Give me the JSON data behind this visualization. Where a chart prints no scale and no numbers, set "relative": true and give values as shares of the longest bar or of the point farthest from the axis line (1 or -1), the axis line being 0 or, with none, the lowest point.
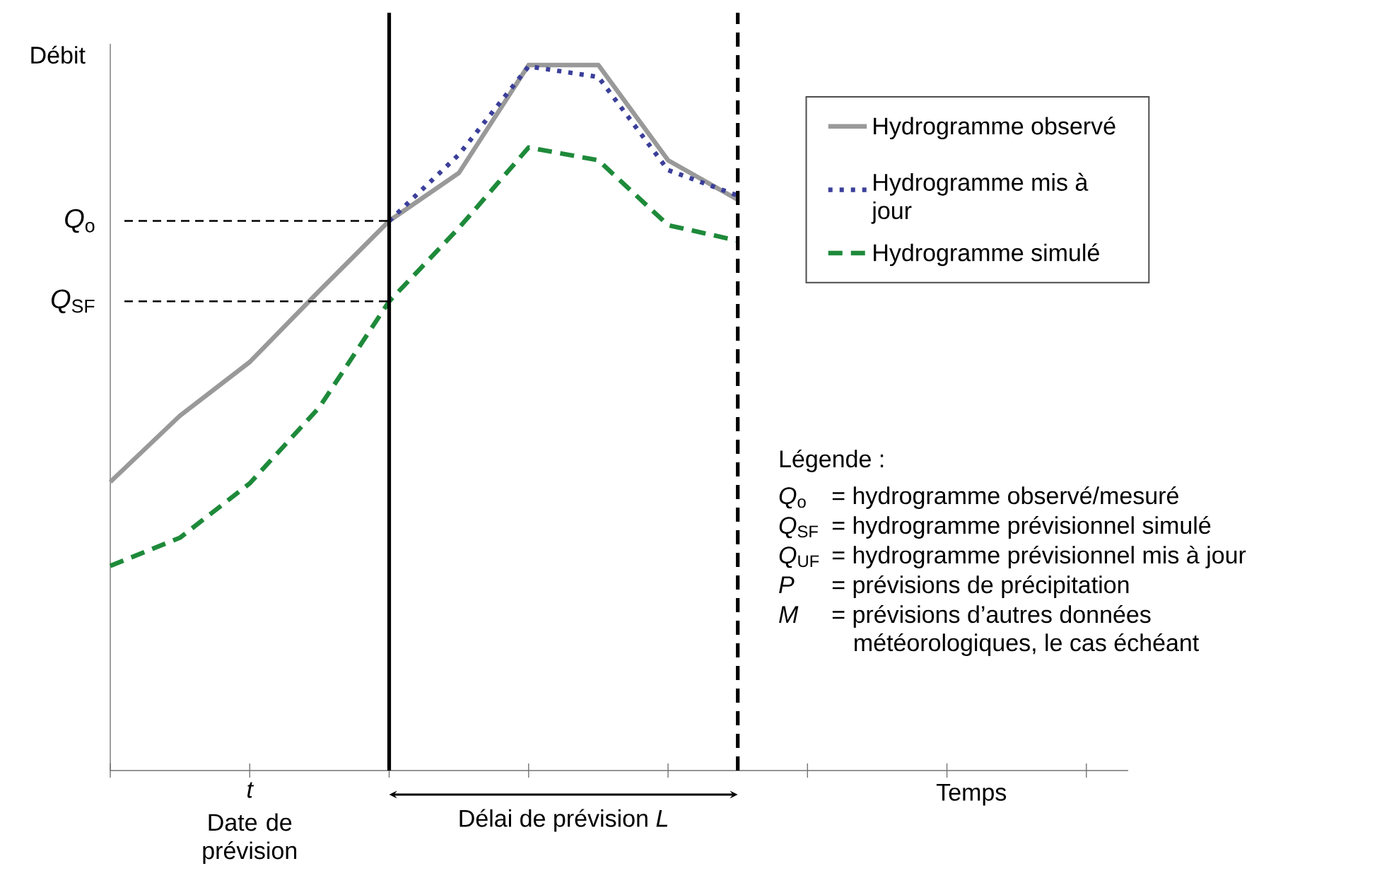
{
  "chart_data": {
    "type": "line",
    "relative": true,
    "xlabel": "Temps",
    "ylabel": "Débit",
    "categories": [
      null,
      null,
      null,
      null,
      null,
      null,
      null,
      null,
      null,
      null,
      null,
      null,
      null,
      null,
      null
    ],
    "legend": "top right",
    "series": [
      {
        "name": "Hydrogramme observé",
        "color": "#999999",
        "line_style": "solid",
        "values": [
          0.409,
          0.503,
          0.579,
          0.68,
          0.779,
          0.847,
          1,
          1,
          0.865,
          0.809,
          null,
          null,
          null,
          null,
          null
        ]
      },
      {
        "name": "Hydrogramme mis à jour",
        "color": "#3b3f9a",
        "line_style": "dotted",
        "values": [
          null,
          null,
          null,
          null,
          0.779,
          0.873,
          0.998,
          0.983,
          0.851,
          0.815,
          null,
          null,
          null,
          null,
          null
        ]
      },
      {
        "name": "Hydrogramme simulé",
        "color": "#1e8a3a",
        "line_style": "dashed",
        "values": [
          0.29,
          0.33,
          0.407,
          0.515,
          0.665,
          0.769,
          0.883,
          0.865,
          0.773,
          0.751,
          null,
          null,
          null,
          null,
          null
        ]
      }
    ],
    "ref_lines": [
      {
        "axis": "y",
        "value": 0.779,
        "label": "*Q*$_{o}$",
        "line_style": "dashed",
        "color": "#000000"
      },
      {
        "axis": "y",
        "value": 0.665,
        "label": "*Q*$_{SF}$",
        "line_style": "dashed",
        "color": "#000000"
      }
    ],
    "annotations": [
      "t",
      "Date de prévision",
      "Délai de prévision *L*",
      "Légende :",
      "*Q*$_{o}$",
      "= hydrogramme observé/mesuré",
      "*Q*$_{SF}$",
      "= hydrogramme prévisionnel simulé",
      "*Q*$_{UF}$",
      "= hydrogramme prévisionnel mis à jour",
      "*P*",
      "= prévisions de précipitation",
      "*M*",
      "= prévisions d’autres données météorologiques, le cas échéant"
    ]
  }
}
